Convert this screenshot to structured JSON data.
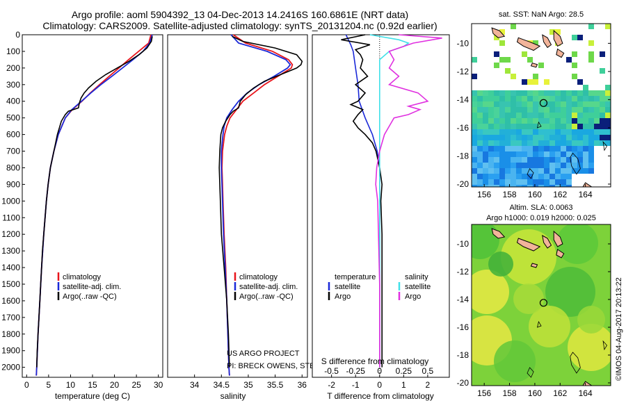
{
  "header": {
    "line1": "Argo profile: aoml 5904392_13 04-Dec-2013 14.2416S 160.6861E (NRT data)",
    "line2": "Climatology: CARS2009. Satellite-adjusted climatology: synTS_20131204.nc (0.92d earlier)"
  },
  "credits": {
    "project": "US ARGO PROJECT",
    "pi": "PI: BRECK OWENS, STEVE JAYNE, P.E. ROBBINS",
    "watermark": "©IMOS 04-Aug-2017 20:13:22"
  },
  "colors": {
    "climatology": "#e8141b",
    "satellite": "#1a28d8",
    "argo": "#000000",
    "salinity_satellite": "#40e0e8",
    "salinity_argo": "#e030e0"
  },
  "chart_data": [
    {
      "type": "line",
      "id": "temperature",
      "xlabel": "temperature (deg C)",
      "ylabel": "",
      "xlim": [
        -1,
        31
      ],
      "ylim": [
        2060,
        0
      ],
      "xticks": [
        "0",
        "5",
        "10",
        "15",
        "20",
        "25",
        "30"
      ],
      "yticks": [
        "0",
        "100",
        "200",
        "300",
        "400",
        "500",
        "600",
        "700",
        "800",
        "900",
        "1000",
        "1100",
        "1200",
        "1300",
        "1400",
        "1500",
        "1600",
        "1700",
        "1800",
        "1900",
        "2000"
      ],
      "legend": [
        "climatology",
        "satellite-adj. clim.",
        "Argo(..raw -QC)"
      ],
      "series": [
        {
          "name": "climatology",
          "depth": [
            0,
            50,
            100,
            150,
            200,
            250,
            300,
            350,
            400,
            450,
            500,
            600,
            700,
            800,
            900,
            1000,
            1200,
            1400,
            1600,
            1800,
            2000,
            2050
          ],
          "values": [
            28.3,
            27.8,
            25.5,
            23.2,
            21.0,
            18.8,
            16.6,
            14.5,
            12.6,
            10.4,
            8.8,
            7.2,
            6.2,
            5.4,
            4.9,
            4.5,
            3.9,
            3.4,
            3.0,
            2.6,
            2.3,
            2.2
          ]
        },
        {
          "name": "satellite-adj. clim.",
          "depth": [
            0,
            50,
            100,
            150,
            200,
            250,
            300,
            350,
            400,
            450,
            500,
            600,
            700,
            800,
            900,
            1000,
            1200,
            1400,
            1600,
            1800,
            2000,
            2050
          ],
          "values": [
            28.6,
            28.0,
            26.5,
            24.2,
            21.8,
            19.4,
            16.9,
            14.6,
            12.5,
            10.3,
            8.8,
            7.2,
            6.2,
            5.4,
            4.9,
            4.5,
            3.9,
            3.4,
            3.0,
            2.6,
            2.3,
            2.2
          ]
        },
        {
          "name": "Argo(..raw -QC)",
          "depth": [
            10,
            40,
            80,
            120,
            160,
            200,
            240,
            280,
            320,
            350,
            380,
            410,
            440,
            460,
            480,
            520,
            600,
            700,
            800,
            900,
            1000,
            1100,
            1200,
            1300,
            1400,
            1500,
            1600,
            1700,
            1800,
            1900,
            2000
          ],
          "values": [
            28.6,
            28.4,
            27.4,
            25.6,
            23.3,
            20.6,
            18.0,
            15.8,
            14.1,
            13.1,
            12.4,
            12.0,
            11.8,
            9.5,
            8.8,
            7.9,
            7.0,
            6.2,
            5.4,
            4.9,
            4.5,
            4.2,
            3.9,
            3.6,
            3.4,
            3.2,
            3.0,
            2.8,
            2.6,
            2.4,
            2.3
          ]
        }
      ]
    },
    {
      "type": "line",
      "id": "salinity",
      "xlabel": "salinity",
      "ylabel": "",
      "xlim": [
        33.5,
        36.1
      ],
      "ylim": [
        2060,
        0
      ],
      "xticks": [
        "34",
        "34.5",
        "35",
        "35.5",
        "36"
      ],
      "legend": [
        "climatology",
        "satellite-adj. clim.",
        "Argo(..raw -QC)"
      ],
      "series": [
        {
          "name": "climatology",
          "depth": [
            0,
            50,
            100,
            150,
            180,
            200,
            250,
            300,
            350,
            400,
            450,
            500,
            550,
            600,
            700,
            800,
            900,
            1000,
            1200,
            1400,
            1600,
            1800,
            2000,
            2050
          ],
          "values": [
            34.72,
            34.95,
            35.45,
            35.75,
            35.82,
            35.8,
            35.55,
            35.3,
            35.1,
            34.9,
            34.78,
            34.66,
            34.6,
            34.56,
            34.52,
            34.51,
            34.52,
            34.53,
            34.55,
            34.58,
            34.6,
            34.62,
            34.64,
            34.65
          ]
        },
        {
          "name": "satellite-adj. clim.",
          "depth": [
            0,
            50,
            100,
            150,
            180,
            200,
            250,
            300,
            350,
            400,
            450,
            500,
            550,
            600,
            700,
            800,
            900,
            1000,
            1200,
            1400,
            1600,
            1800,
            2000,
            2050
          ],
          "values": [
            34.68,
            34.82,
            35.35,
            35.7,
            35.78,
            35.73,
            35.48,
            35.2,
            34.98,
            34.82,
            34.7,
            34.6,
            34.55,
            34.53,
            34.5,
            34.5,
            34.51,
            34.52,
            34.54,
            34.57,
            34.6,
            34.62,
            34.64,
            34.65
          ]
        },
        {
          "name": "Argo(..raw -QC)",
          "depth": [
            10,
            40,
            80,
            120,
            160,
            180,
            200,
            240,
            280,
            320,
            360,
            400,
            440,
            460,
            480,
            520,
            560,
            600,
            700,
            800,
            900,
            1000,
            1200,
            1400,
            1600,
            1800,
            2000
          ],
          "values": [
            34.7,
            34.9,
            35.5,
            35.9,
            36.0,
            35.98,
            35.9,
            35.6,
            35.3,
            35.1,
            34.95,
            34.85,
            34.82,
            34.72,
            34.66,
            34.58,
            34.52,
            34.49,
            34.47,
            34.46,
            34.47,
            34.48,
            34.5,
            34.55,
            34.6,
            34.63,
            34.65
          ]
        }
      ]
    },
    {
      "type": "line",
      "id": "difference",
      "xlabel": "T difference from climatology",
      "xlabel_top": "S difference from climatology",
      "xlim": [
        -2.8,
        2.9
      ],
      "slim": [
        -0.7,
        0.725
      ],
      "ylim": [
        2060,
        0
      ],
      "xticks": [
        "-2",
        "-1",
        "0",
        "1",
        "2"
      ],
      "sticks": [
        "-0.5",
        "-0.25",
        "0",
        "0.25",
        "0.5"
      ],
      "legend_temperature": [
        "temperature",
        "satellite",
        "Argo"
      ],
      "legend_salinity": [
        "salinity",
        "satellite",
        "Argo"
      ],
      "series": [
        {
          "name": "temperature satellite",
          "depth": [
            0,
            30,
            60,
            100,
            150,
            200,
            300,
            400,
            500,
            600,
            700,
            800,
            900,
            1000,
            1500,
            2000
          ],
          "values": [
            -1.4,
            -1.3,
            -1.2,
            -1.1,
            -1.05,
            -1.0,
            -0.9,
            -0.85,
            -0.6,
            -0.3,
            -0.1,
            0.0,
            0.0,
            0.0,
            0.0,
            0.0
          ]
        },
        {
          "name": "temperature Argo",
          "depth": [
            0,
            30,
            60,
            90,
            120,
            150,
            200,
            250,
            300,
            350,
            400,
            420,
            450,
            480,
            520,
            560,
            600,
            650,
            700,
            800,
            900,
            1000,
            1200,
            1500,
            2000
          ],
          "values": [
            -0.6,
            -1.6,
            -0.4,
            -1.0,
            -0.8,
            -0.7,
            -0.8,
            -0.5,
            -1.0,
            -0.6,
            -0.9,
            -1.2,
            -0.7,
            -0.9,
            -1.1,
            -0.9,
            -0.6,
            -0.3,
            -0.15,
            0.0,
            0.1,
            0.05,
            0.1,
            0.1,
            0.1
          ]
        },
        {
          "name": "salinity satellite",
          "depth": [
            0,
            30,
            50,
            70,
            100,
            150,
            200,
            250,
            300,
            350,
            400,
            450,
            500,
            600,
            700,
            800,
            1000,
            1500,
            2000
          ],
          "values": [
            -0.1,
            0.2,
            0.3,
            0.25,
            0.1,
            0.0,
            0.0,
            0.0,
            0.0,
            0.0,
            0.0,
            0.0,
            0.0,
            0.0,
            0.0,
            0.0,
            0.0,
            0.0,
            0.0
          ]
        },
        {
          "name": "salinity Argo",
          "depth": [
            0,
            20,
            50,
            80,
            100,
            150,
            200,
            250,
            300,
            350,
            400,
            430,
            450,
            480,
            500,
            550,
            600,
            700,
            800,
            900,
            1000,
            1500,
            2000
          ],
          "values": [
            0.2,
            0.65,
            0.35,
            0.2,
            0.1,
            0.15,
            0.1,
            0.2,
            0.1,
            0.4,
            0.5,
            0.3,
            0.42,
            0.3,
            0.15,
            0.1,
            0.05,
            0.0,
            -0.03,
            -0.04,
            -0.02,
            0.0,
            0.0
          ]
        }
      ]
    },
    {
      "type": "heatmap",
      "id": "sst_map",
      "title": "sat. SST: NaN Argo: 28.5",
      "xlim": [
        155,
        166
      ],
      "ylim": [
        -20.2,
        -8.6
      ],
      "xticks": [
        "156",
        "158",
        "160",
        "162",
        "164"
      ],
      "yticks": [
        "-10",
        "-12",
        "-14",
        "-16",
        "-18",
        "-20"
      ],
      "marker": {
        "lon": 160.69,
        "lat": -14.24
      }
    },
    {
      "type": "heatmap",
      "id": "sla_map",
      "title_line1": "Altim. SLA: 0.0063",
      "title_line2": "Argo h1000: 0.019 h2000: 0.025",
      "xlim": [
        155,
        166
      ],
      "ylim": [
        -20.2,
        -8.6
      ],
      "xticks": [
        "156",
        "158",
        "160",
        "162",
        "164"
      ],
      "yticks": [
        "-10",
        "-12",
        "-14",
        "-16",
        "-18",
        "-20"
      ],
      "marker": {
        "lon": 160.69,
        "lat": -14.24
      }
    }
  ]
}
